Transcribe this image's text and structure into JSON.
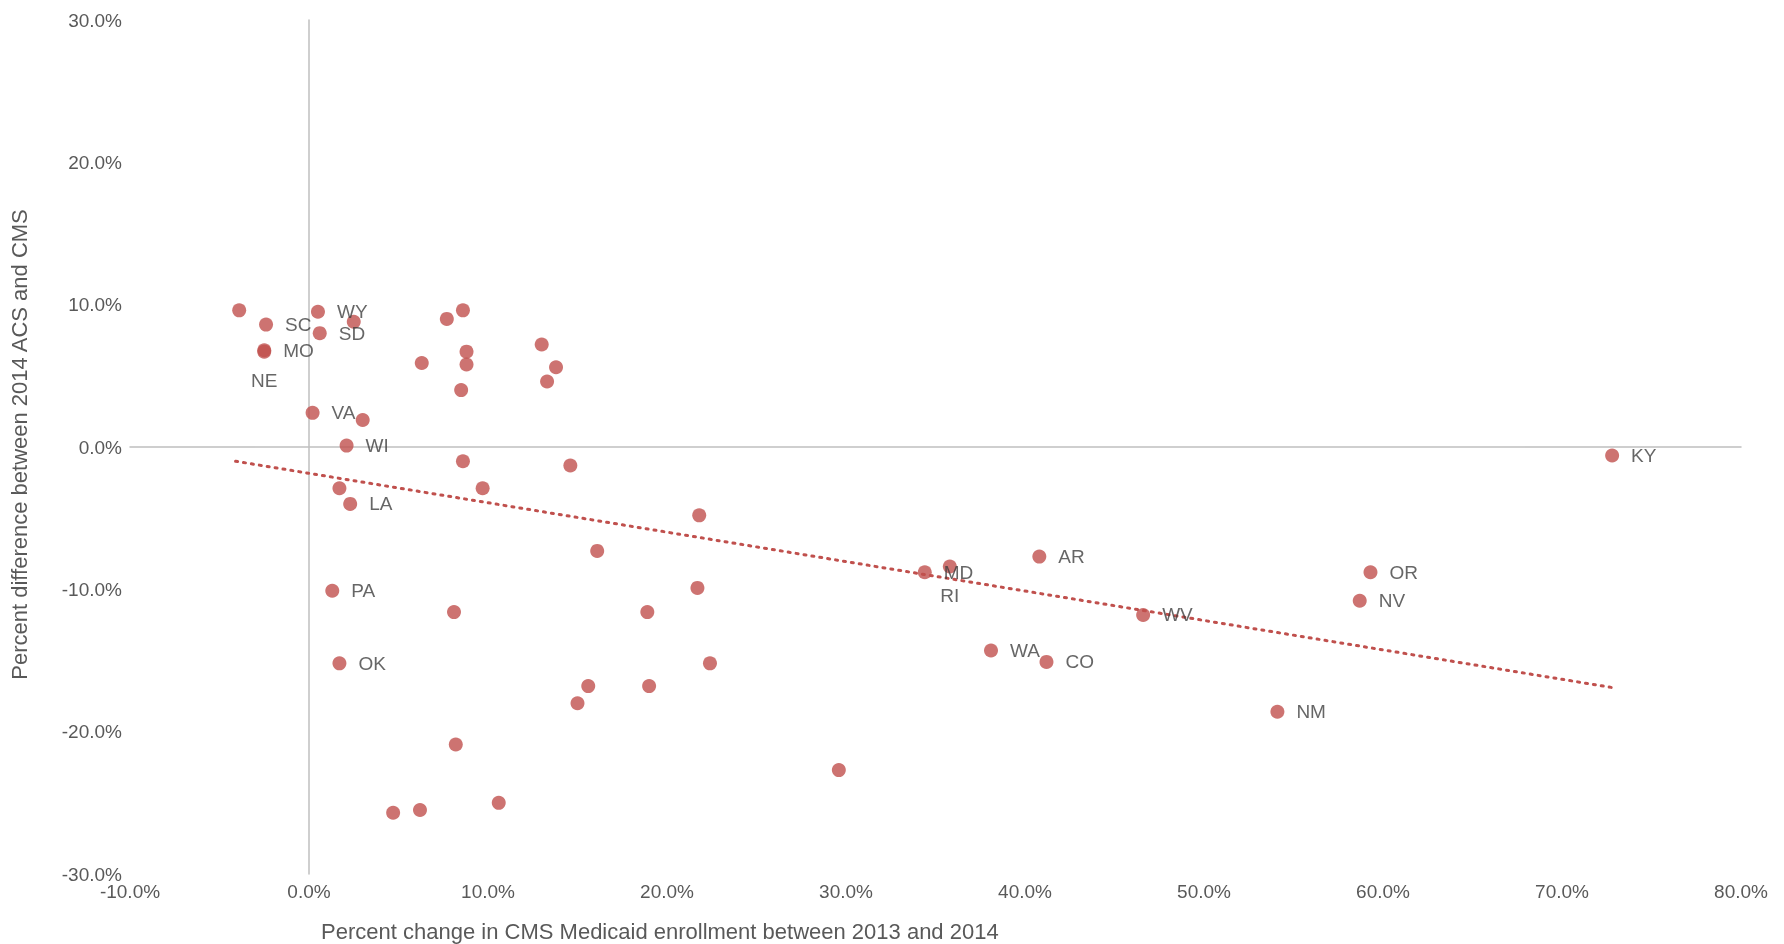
{
  "chart_data": {
    "type": "scatter",
    "xlabel": "Percent change in CMS Medicaid enrollment between 2013 and 2014",
    "ylabel": "Percent difference between 2014 ACS and CMS",
    "xlim": [
      -10,
      80
    ],
    "xticks": [
      {
        "value": -10,
        "label": "-10.0%"
      },
      {
        "value": 0,
        "label": "0.0%"
      },
      {
        "value": 10,
        "label": "10.0%"
      },
      {
        "value": 20,
        "label": "20.0%"
      },
      {
        "value": 30,
        "label": "30.0%"
      },
      {
        "value": 40,
        "label": "40.0%"
      },
      {
        "value": 50,
        "label": "50.0%"
      },
      {
        "value": 60,
        "label": "60.0%"
      },
      {
        "value": 70,
        "label": "70.0%"
      },
      {
        "value": 80,
        "label": "80.0%"
      }
    ],
    "ylim": [
      -30,
      30
    ],
    "yticks": [
      {
        "value": -30,
        "label": "-30.0%"
      },
      {
        "value": -20,
        "label": "-20.0%"
      },
      {
        "value": -10,
        "label": "-10.0%"
      },
      {
        "value": 0,
        "label": "0.0%"
      },
      {
        "value": 10,
        "label": "10.0%"
      },
      {
        "value": 20,
        "label": "20.0%"
      },
      {
        "value": 30,
        "label": "30.0%"
      }
    ],
    "marker": "circle",
    "series": [
      {
        "type": "scatter",
        "color": "#c0504d",
        "x": [
          -3.9,
          -2.4,
          -2.5,
          -2.5,
          0.5,
          0.6,
          2.5,
          0.2,
          3.0,
          2.1,
          1.7,
          2.3,
          7.7,
          8.6,
          6.3,
          8.8,
          8.8,
          8.5,
          13.0,
          13.8,
          13.3,
          8.6,
          14.6,
          9.7,
          21.8,
          16.1,
          21.7,
          18.9,
          8.1,
          1.3,
          1.7,
          22.4,
          15.6,
          19.0,
          15.0,
          8.2,
          4.7,
          6.2,
          10.6,
          29.6,
          34.4,
          35.8,
          40.8,
          46.6,
          38.1,
          41.2,
          59.3,
          58.7,
          54.1,
          72.8
        ],
        "values": [
          9.6,
          8.6,
          6.8,
          6.7,
          9.5,
          8.0,
          8.8,
          2.4,
          1.9,
          0.1,
          -2.9,
          -4.0,
          9.0,
          9.6,
          5.9,
          6.7,
          5.8,
          4.0,
          7.2,
          5.6,
          4.6,
          -1.0,
          -1.3,
          -2.9,
          -4.8,
          -7.3,
          -9.9,
          -11.6,
          -11.6,
          -10.1,
          -15.2,
          -15.2,
          -16.8,
          -16.8,
          -18.0,
          -20.9,
          -25.7,
          -25.5,
          -25.0,
          -22.7,
          -8.8,
          -8.4,
          -7.7,
          -11.8,
          -14.3,
          -15.1,
          -8.8,
          -10.8,
          -18.6,
          -0.6
        ],
        "value_labels": [
          null,
          "SC",
          "MO",
          "NE",
          "WY",
          "SD",
          null,
          "VA",
          null,
          "WI",
          null,
          "LA",
          null,
          null,
          null,
          null,
          null,
          null,
          null,
          null,
          null,
          null,
          null,
          null,
          null,
          null,
          null,
          null,
          null,
          "PA",
          "OK",
          null,
          null,
          null,
          null,
          null,
          null,
          null,
          null,
          null,
          "MD",
          "RI",
          "AR",
          "WV",
          "WA",
          "CO",
          "OR",
          "NV",
          "NM",
          "KY"
        ]
      },
      {
        "type": "line",
        "color": "#c0504d",
        "line_style": "dotted",
        "marker": "none",
        "x": [
          -4.1,
          72.8
        ],
        "values": [
          -1.0,
          -16.9
        ]
      }
    ]
  }
}
